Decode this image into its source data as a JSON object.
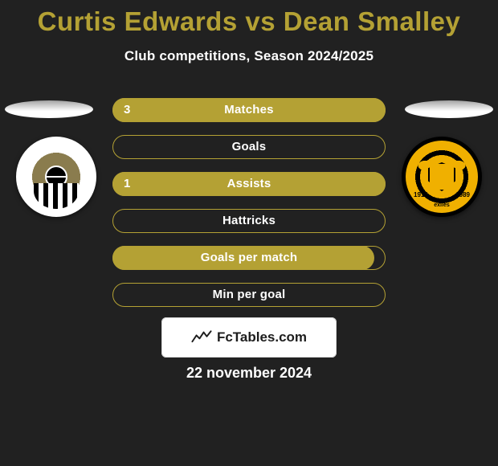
{
  "title": "Curtis Edwards vs Dean Smalley",
  "subtitle": "Club competitions, Season 2024/2025",
  "date": "22 november 2024",
  "colors": {
    "background": "#212121",
    "accent": "#b4a134",
    "text": "#ffffff",
    "badge_bg": "#ffffff",
    "badge_text": "#1d1d1d"
  },
  "left_crest": {
    "name": "Notts County",
    "year_range": ""
  },
  "right_crest": {
    "name": "Newport County",
    "year_left": "1912",
    "year_right": "1989",
    "bottom_text": "exiles"
  },
  "bars": {
    "track_width": 340,
    "bar_color": "#b4a134",
    "items": [
      {
        "label": "Matches",
        "left_value": "3",
        "fill_pct": 100,
        "show_left_value": true
      },
      {
        "label": "Goals",
        "left_value": "",
        "fill_pct": 0,
        "show_left_value": false
      },
      {
        "label": "Assists",
        "left_value": "1",
        "fill_pct": 100,
        "show_left_value": true
      },
      {
        "label": "Hattricks",
        "left_value": "",
        "fill_pct": 0,
        "show_left_value": false
      },
      {
        "label": "Goals per match",
        "left_value": "",
        "fill_pct": 96,
        "show_left_value": false
      },
      {
        "label": "Min per goal",
        "left_value": "",
        "fill_pct": 0,
        "show_left_value": false
      }
    ]
  },
  "footer_badge": {
    "text": "FcTables.com"
  }
}
